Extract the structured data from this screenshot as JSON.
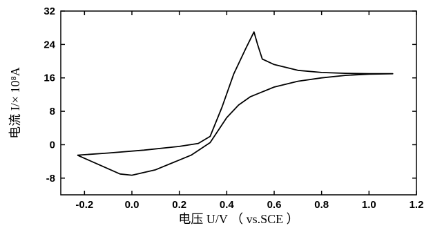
{
  "chart_data": {
    "type": "line",
    "title": "",
    "xlabel": "电压 U/V （ vs.SCE ）",
    "ylabel": "电流 I/× 10⁸A",
    "xlim": [
      -0.3,
      1.2
    ],
    "ylim": [
      -12,
      32
    ],
    "xticks": [
      -0.2,
      0.0,
      0.2,
      0.4,
      0.6,
      0.8,
      1.0,
      1.2
    ],
    "xtick_labels": [
      "-0.2",
      "0.0",
      "0.2",
      "0.4",
      "0.6",
      "0.8",
      "1.0",
      "1.2"
    ],
    "yticks": [
      -8,
      0,
      8,
      16,
      24,
      32
    ],
    "ytick_labels": [
      "-8",
      "0",
      "8",
      "16",
      "24",
      "32"
    ],
    "grid": false,
    "series": [
      {
        "color": "#000000",
        "x": [
          -0.23,
          -0.1,
          0.05,
          0.2,
          0.28,
          0.33,
          0.38,
          0.43,
          0.48,
          0.515,
          0.53,
          0.55,
          0.6,
          0.7,
          0.8,
          0.9,
          1.0,
          1.1,
          1.0,
          0.9,
          0.8,
          0.7,
          0.6,
          0.5,
          0.45,
          0.4,
          0.33,
          0.25,
          0.1,
          0.0,
          -0.05,
          -0.15,
          -0.23
        ],
        "y": [
          -2.5,
          -2.0,
          -1.3,
          -0.4,
          0.3,
          2.0,
          9.0,
          17.0,
          23.0,
          27.0,
          24.0,
          20.5,
          19.2,
          17.8,
          17.3,
          17.1,
          17.0,
          17.0,
          16.9,
          16.6,
          16.0,
          15.2,
          13.8,
          11.5,
          9.5,
          6.5,
          0.5,
          -2.5,
          -6.0,
          -7.3,
          -7.0,
          -4.5,
          -2.5
        ]
      }
    ]
  }
}
